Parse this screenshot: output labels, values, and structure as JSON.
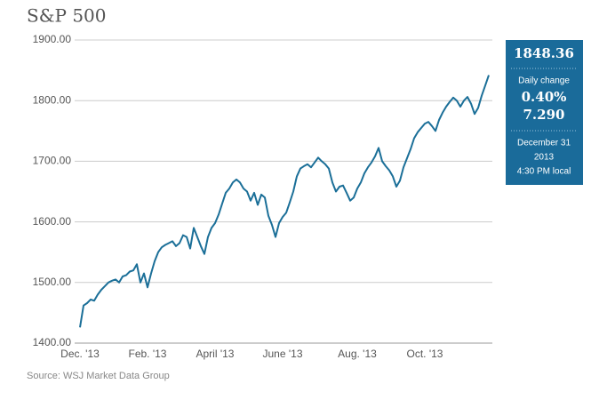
{
  "chart_data": {
    "type": "line",
    "title": "S&P 500",
    "source": "Source: WSJ Market Data Group",
    "color": "#1b6f98",
    "grid": true,
    "ylim": [
      1400,
      1900
    ],
    "yticks": [
      {
        "value": 1400,
        "label": "1400.00"
      },
      {
        "value": 1500,
        "label": "1500.00"
      },
      {
        "value": 1600,
        "label": "1600.00"
      },
      {
        "value": 1700,
        "label": "1700.00"
      },
      {
        "value": 1800,
        "label": "1800.00"
      },
      {
        "value": 1900,
        "label": "1900.00"
      }
    ],
    "categories": [
      "Dec. '13",
      null,
      null,
      null,
      null,
      null,
      null,
      null,
      null,
      null,
      null,
      null,
      null,
      null,
      null,
      null,
      null,
      null,
      null,
      "Feb. '13",
      null,
      null,
      null,
      null,
      null,
      null,
      null,
      null,
      null,
      null,
      null,
      null,
      null,
      null,
      null,
      null,
      null,
      null,
      "April '13",
      null,
      null,
      null,
      null,
      null,
      null,
      null,
      null,
      null,
      null,
      null,
      null,
      null,
      null,
      null,
      null,
      null,
      null,
      "June '13",
      null,
      null,
      null,
      null,
      null,
      null,
      null,
      null,
      null,
      null,
      null,
      null,
      null,
      null,
      null,
      null,
      null,
      null,
      null,
      null,
      "Aug. '13",
      null,
      null,
      null,
      null,
      null,
      null,
      null,
      null,
      null,
      null,
      null,
      null,
      null,
      null,
      null,
      null,
      null,
      null,
      "Oct. '13",
      null,
      null,
      null,
      null,
      null,
      null,
      null,
      null,
      null,
      null,
      null,
      null,
      null,
      null,
      null,
      null,
      null,
      null
    ],
    "values": [
      1426,
      1462,
      1466,
      1472,
      1470,
      1480,
      1488,
      1494,
      1500,
      1503,
      1505,
      1500,
      1510,
      1512,
      1518,
      1520,
      1530,
      1500,
      1515,
      1492,
      1515,
      1535,
      1550,
      1558,
      1562,
      1565,
      1568,
      1560,
      1565,
      1578,
      1575,
      1556,
      1590,
      1575,
      1560,
      1547,
      1575,
      1590,
      1598,
      1612,
      1630,
      1648,
      1655,
      1665,
      1670,
      1665,
      1655,
      1650,
      1635,
      1648,
      1628,
      1645,
      1640,
      1610,
      1595,
      1575,
      1598,
      1608,
      1615,
      1632,
      1650,
      1675,
      1688,
      1692,
      1695,
      1690,
      1698,
      1706,
      1700,
      1695,
      1688,
      1665,
      1650,
      1658,
      1660,
      1648,
      1635,
      1640,
      1655,
      1665,
      1680,
      1690,
      1698,
      1708,
      1722,
      1700,
      1692,
      1685,
      1675,
      1658,
      1668,
      1690,
      1705,
      1720,
      1738,
      1748,
      1755,
      1762,
      1765,
      1758,
      1750,
      1768,
      1780,
      1790,
      1798,
      1805,
      1800,
      1790,
      1800,
      1806,
      1795,
      1778,
      1788,
      1808,
      1825,
      1842
    ],
    "callout": {
      "last": "1848.36",
      "change_label": "Daily change",
      "change_pct": "0.40%",
      "change_abs": "7.290",
      "date": "December 31",
      "year": "2013",
      "time": "4:30 PM local"
    }
  }
}
